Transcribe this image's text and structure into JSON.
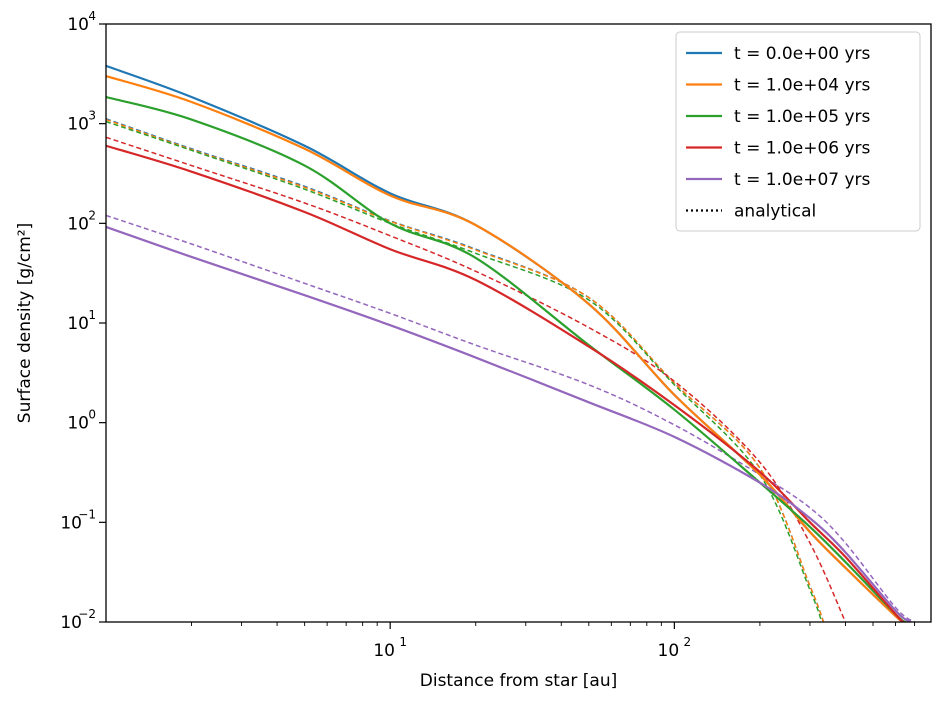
{
  "chart_data": {
    "type": "line",
    "xlabel": "Distance from star [au]",
    "ylabel": "Surface density [g/cm²]",
    "xscale": "log",
    "yscale": "log",
    "xlim": [
      1.0,
      800
    ],
    "ylim": [
      0.01,
      10000
    ],
    "x_ticks": [
      {
        "value": 10,
        "base": "10",
        "exp": "1"
      },
      {
        "value": 100,
        "base": "10",
        "exp": "2"
      }
    ],
    "y_ticks": [
      {
        "value": 0.01,
        "base": "10",
        "exp": "−2"
      },
      {
        "value": 0.1,
        "base": "10",
        "exp": "−1"
      },
      {
        "value": 1,
        "base": "10",
        "exp": "0"
      },
      {
        "value": 10,
        "base": "10",
        "exp": "1"
      },
      {
        "value": 100,
        "base": "10",
        "exp": "2"
      },
      {
        "value": 1000,
        "base": "10",
        "exp": "3"
      },
      {
        "value": 10000,
        "base": "10",
        "exp": "4"
      }
    ],
    "legend_position": "upper right",
    "series": [
      {
        "name": "t = 0.0e+00 yrs",
        "color": "#1f77b4",
        "numerical": [
          [
            1.0,
            3800
          ],
          [
            2,
            1850
          ],
          [
            5,
            600
          ],
          [
            10,
            200
          ],
          [
            20,
            96
          ],
          [
            50,
            15.5
          ],
          [
            100,
            1.9
          ],
          [
            200,
            0.3
          ],
          [
            300,
            0.08
          ],
          [
            400,
            0.035
          ],
          [
            600,
            0.0115
          ],
          [
            640,
            0.01
          ]
        ],
        "analytical": [
          [
            1.0,
            1120
          ],
          [
            2,
            560
          ],
          [
            5,
            235
          ],
          [
            10,
            106
          ],
          [
            20,
            55
          ],
          [
            50,
            18
          ],
          [
            100,
            2.5
          ],
          [
            200,
            0.35
          ],
          [
            300,
            0.023
          ],
          [
            335,
            0.01
          ]
        ]
      },
      {
        "name": "t = 1.0e+04 yrs",
        "color": "#ff7f0e",
        "numerical": [
          [
            1.0,
            3000
          ],
          [
            2,
            1650
          ],
          [
            5,
            560
          ],
          [
            10,
            190
          ],
          [
            20,
            96
          ],
          [
            50,
            15.5
          ],
          [
            100,
            1.9
          ],
          [
            200,
            0.3
          ],
          [
            300,
            0.08
          ],
          [
            400,
            0.035
          ],
          [
            600,
            0.0115
          ],
          [
            640,
            0.01
          ]
        ],
        "analytical": [
          [
            1.0,
            1100
          ],
          [
            2,
            550
          ],
          [
            5,
            230
          ],
          [
            10,
            105
          ],
          [
            20,
            54
          ],
          [
            50,
            18
          ],
          [
            100,
            2.5
          ],
          [
            200,
            0.35
          ],
          [
            300,
            0.023
          ],
          [
            335,
            0.01
          ]
        ]
      },
      {
        "name": "t = 1.0e+05 yrs",
        "color": "#2ca02c",
        "numerical": [
          [
            1.0,
            1850
          ],
          [
            2,
            1100
          ],
          [
            5,
            380
          ],
          [
            10,
            100
          ],
          [
            20,
            45
          ],
          [
            50,
            6
          ],
          [
            100,
            1.35
          ],
          [
            200,
            0.25
          ],
          [
            300,
            0.09
          ],
          [
            400,
            0.04
          ],
          [
            600,
            0.012
          ],
          [
            650,
            0.01
          ]
        ],
        "analytical": [
          [
            1.0,
            1050
          ],
          [
            2,
            540
          ],
          [
            5,
            220
          ],
          [
            10,
            100
          ],
          [
            20,
            50
          ],
          [
            50,
            17
          ],
          [
            100,
            2.4
          ],
          [
            200,
            0.3
          ],
          [
            300,
            0.021
          ],
          [
            330,
            0.01
          ]
        ]
      },
      {
        "name": "t = 1.0e+06 yrs",
        "color": "#d62728",
        "numerical": [
          [
            1.0,
            600
          ],
          [
            2,
            330
          ],
          [
            5,
            130
          ],
          [
            10,
            55
          ],
          [
            20,
            27
          ],
          [
            50,
            5.8
          ],
          [
            100,
            1.5
          ],
          [
            200,
            0.32
          ],
          [
            300,
            0.1
          ],
          [
            400,
            0.045
          ],
          [
            600,
            0.012
          ],
          [
            640,
            0.01
          ]
        ],
        "analytical": [
          [
            1.0,
            730
          ],
          [
            2,
            380
          ],
          [
            5,
            160
          ],
          [
            10,
            75
          ],
          [
            20,
            33
          ],
          [
            50,
            9
          ],
          [
            100,
            2.6
          ],
          [
            200,
            0.4
          ],
          [
            300,
            0.062
          ],
          [
            400,
            0.01
          ]
        ]
      },
      {
        "name": "t = 1.0e+07 yrs",
        "color": "#9467bd",
        "numerical": [
          [
            1.0,
            92
          ],
          [
            2,
            46
          ],
          [
            5,
            19
          ],
          [
            10,
            9.5
          ],
          [
            20,
            4.5
          ],
          [
            50,
            1.6
          ],
          [
            100,
            0.72
          ],
          [
            200,
            0.25
          ],
          [
            300,
            0.11
          ],
          [
            400,
            0.05
          ],
          [
            600,
            0.013
          ],
          [
            680,
            0.01
          ]
        ],
        "analytical": [
          [
            1.0,
            120
          ],
          [
            2,
            62
          ],
          [
            5,
            25
          ],
          [
            10,
            12.5
          ],
          [
            20,
            6
          ],
          [
            50,
            2.4
          ],
          [
            100,
            0.95
          ],
          [
            200,
            0.3
          ],
          [
            300,
            0.14
          ],
          [
            400,
            0.062
          ],
          [
            600,
            0.014
          ],
          [
            700,
            0.01
          ]
        ]
      }
    ],
    "legend_extra": {
      "name": "analytical",
      "color": "#000000",
      "style": "dotted"
    }
  }
}
